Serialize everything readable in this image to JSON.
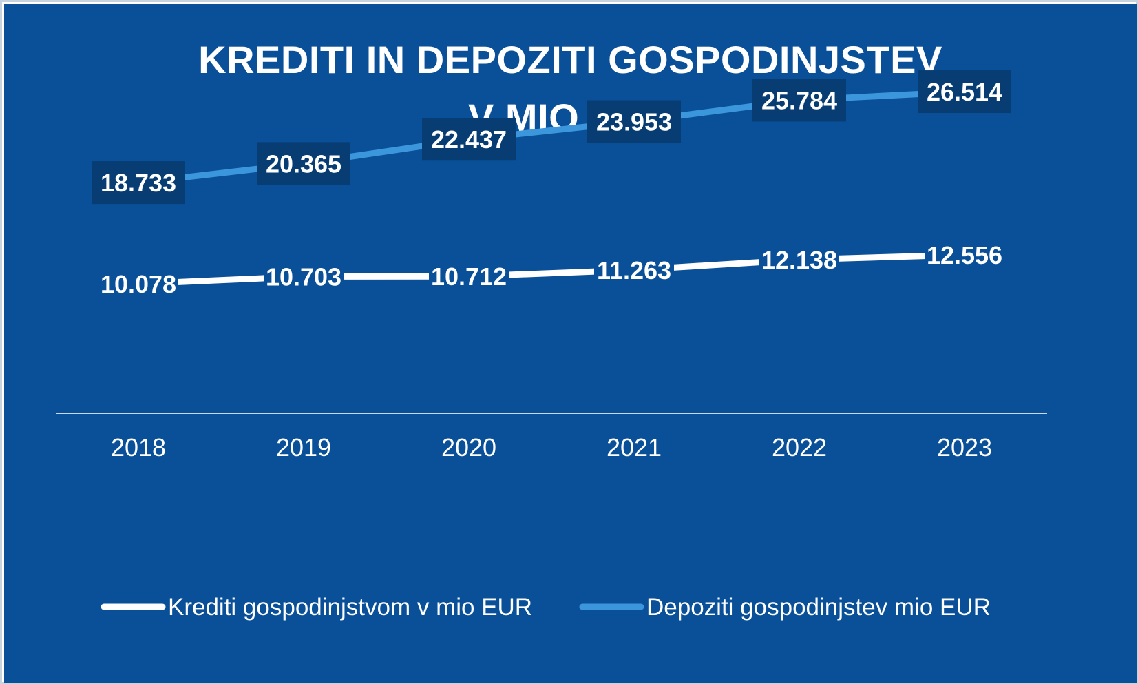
{
  "chart_data": {
    "type": "line",
    "title": "KREDITI IN DEPOZITI GOSPODINJSTEV V MIO EUR",
    "title_lines": [
      "KREDITI IN DEPOZITI GOSPODINJSTEV",
      "V MIO EUR"
    ],
    "categories": [
      "2018",
      "2019",
      "2020",
      "2021",
      "2022",
      "2023"
    ],
    "series": [
      {
        "name": "Krediti gospodinjstvom v mio EUR",
        "color": "#ffffff",
        "values": [
          10078,
          10703,
          10712,
          11263,
          12138,
          12556
        ],
        "labels": [
          "10.078",
          "10.703",
          "10.712",
          "11.263",
          "12.138",
          "12.556"
        ],
        "label_box": false
      },
      {
        "name": "Depoziti gospodinjstev mio EUR",
        "color": "#3b96dc",
        "values": [
          18733,
          20365,
          22437,
          23953,
          25784,
          26514
        ],
        "labels": [
          "18.733",
          "20.365",
          "22.437",
          "23.953",
          "25.784",
          "26.514"
        ],
        "label_box": true
      }
    ],
    "ylim": [
      -1000,
      34000
    ],
    "grid": false,
    "legend": "bottom",
    "colors": {
      "background": "#0a5098",
      "label_box": "#083d74",
      "axis": "#c9d8ec",
      "text": "#ffffff"
    }
  }
}
